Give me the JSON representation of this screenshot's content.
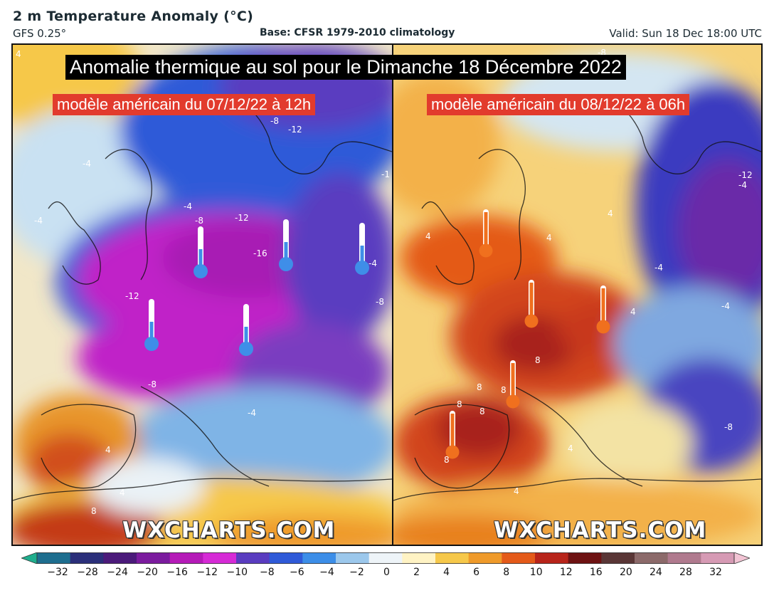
{
  "header": {
    "title": "2 m Temperature Anomaly (°C)",
    "model": "GFS 0.25°",
    "base": "Base: CFSR 1979-2010 climatology",
    "valid": "Valid: Sun 18 Dec 18:00 UTC"
  },
  "overlay": {
    "banner": "Anomalie thermique au sol pour le Dimanche 18 Décembre 2022",
    "left_subtitle": "modèle américain du 07/12/22 à 12h",
    "right_subtitle": "modèle américain du 08/12/22 à 06h"
  },
  "watermark": "WXCHARTS.COM",
  "contour_labels": {
    "left": [
      "4",
      "-8",
      "-12",
      "-4",
      "-4",
      "-1",
      "-12",
      "-16",
      "-8",
      "-12",
      "-8",
      "-8",
      "-4",
      "4",
      "8",
      "4",
      "-4",
      "-4"
    ],
    "right": [
      "4",
      "-8",
      "-12",
      "-4",
      "4",
      "4",
      "-4",
      "4",
      "8",
      "8",
      "8",
      "8",
      "8",
      "-4",
      "-8",
      "4",
      "8",
      "4"
    ]
  },
  "icons": {
    "cold_thermometer": "thermometer-cold-icon",
    "warm_thermometer": "thermometer-warm-icon"
  },
  "colorbar": {
    "ticks": [
      "−32",
      "−28",
      "−24",
      "−20",
      "−16",
      "−12",
      "−10",
      "−8",
      "−6",
      "−4",
      "−2",
      "0",
      "2",
      "4",
      "6",
      "8",
      "10",
      "12",
      "16",
      "20",
      "24",
      "28",
      "32"
    ],
    "colors": [
      "#1fae8d",
      "#1e6e8f",
      "#2b2f7a",
      "#4b1a7a",
      "#7b1b9e",
      "#b51ab8",
      "#d62ad6",
      "#5a3cc0",
      "#2f5ad8",
      "#3c8ee8",
      "#9cc8ec",
      "#eef4f8",
      "#fff3c4",
      "#f6c84a",
      "#ef9a2a",
      "#e45a19",
      "#b8241a",
      "#6e1212",
      "#5a3636",
      "#8c6a6a",
      "#b07a8e",
      "#d69ab4",
      "#f2c4d4"
    ]
  },
  "colors": {
    "banner_bg": "#000000",
    "subtitle_bg": "#e23b2d",
    "cold_thermo": "#3f8ee8",
    "warm_thermo": "#f0701e"
  }
}
